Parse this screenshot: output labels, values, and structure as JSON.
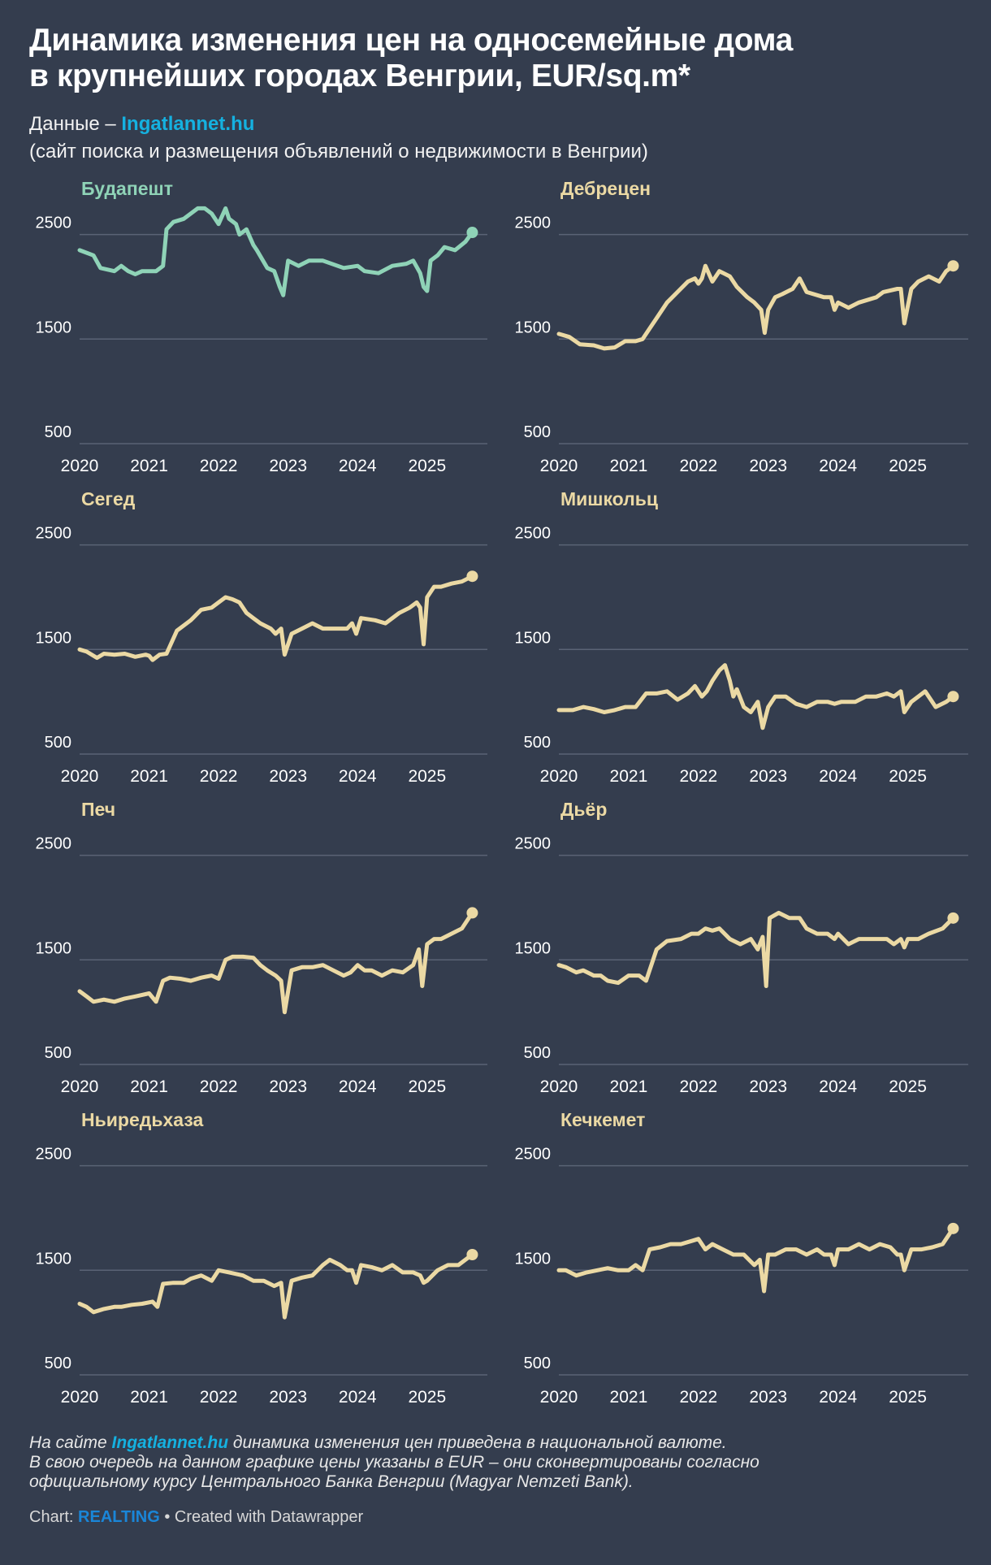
{
  "header": {
    "title_line1": "Динамика изменения цен на односемейные дома",
    "title_line2": "в крупнейших городах Венгрии, EUR/sq.m*",
    "source_prefix": "Данные – ",
    "source_link": "Ingatlannet.hu",
    "source_desc": "(сайт поиска и размещения объявлений о недвижимости в Венгрии)"
  },
  "colors": {
    "background": "#343d4e",
    "budapest": "#8fd3b7",
    "others": "#ebd9a4",
    "grid": "#5a6375",
    "link": "#15b1e0",
    "brand": "#1a86d8"
  },
  "chart_data": [
    {
      "type": "line",
      "title": "Будапешт",
      "color": "#8fd3b7",
      "x_ticks": [
        "2020",
        "2021",
        "2022",
        "2023",
        "2024",
        "2025"
      ],
      "y_ticks": [
        500,
        1500,
        2500
      ],
      "ylim": [
        500,
        2800
      ],
      "xlim": [
        2020.0,
        2025.75
      ],
      "x": [
        2020.0,
        2020.2,
        2020.3,
        2020.5,
        2020.6,
        2020.7,
        2020.8,
        2020.9,
        2021.1,
        2021.2,
        2021.25,
        2021.35,
        2021.5,
        2021.7,
        2021.8,
        2021.9,
        2022.0,
        2022.1,
        2022.15,
        2022.25,
        2022.3,
        2022.4,
        2022.5,
        2022.55,
        2022.7,
        2022.8,
        2022.88,
        2022.93,
        2023.0,
        2023.15,
        2023.3,
        2023.5,
        2023.8,
        2024.0,
        2024.1,
        2024.3,
        2024.5,
        2024.7,
        2024.8,
        2024.9,
        2024.95,
        2025.0,
        2025.05,
        2025.15,
        2025.25,
        2025.4,
        2025.55,
        2025.65
      ],
      "values": [
        2350,
        2300,
        2180,
        2150,
        2200,
        2150,
        2120,
        2150,
        2150,
        2200,
        2550,
        2620,
        2650,
        2750,
        2750,
        2700,
        2600,
        2750,
        2650,
        2600,
        2500,
        2550,
        2400,
        2350,
        2180,
        2150,
        2000,
        1920,
        2250,
        2200,
        2250,
        2250,
        2180,
        2200,
        2150,
        2130,
        2200,
        2220,
        2250,
        2130,
        2000,
        1960,
        2250,
        2300,
        2380,
        2350,
        2430,
        2520
      ]
    },
    {
      "type": "line",
      "title": "Дебрецен",
      "color": "#ebd9a4",
      "x_ticks": [
        "2020",
        "2021",
        "2022",
        "2023",
        "2024",
        "2025"
      ],
      "y_ticks": [
        500,
        1500,
        2500
      ],
      "ylim": [
        500,
        2800
      ],
      "xlim": [
        2020.0,
        2025.75
      ],
      "x": [
        2020.0,
        2020.15,
        2020.3,
        2020.5,
        2020.65,
        2020.8,
        2020.95,
        2021.1,
        2021.2,
        2021.3,
        2021.4,
        2021.55,
        2021.7,
        2021.85,
        2021.95,
        2022.0,
        2022.05,
        2022.1,
        2022.2,
        2022.3,
        2022.45,
        2022.55,
        2022.7,
        2022.8,
        2022.9,
        2022.95,
        2023.0,
        2023.1,
        2023.2,
        2023.35,
        2023.45,
        2023.55,
        2023.8,
        2023.9,
        2023.95,
        2024.0,
        2024.15,
        2024.3,
        2024.55,
        2024.65,
        2024.85,
        2024.9,
        2024.95,
        2025.05,
        2025.15,
        2025.3,
        2025.45,
        2025.55,
        2025.65
      ],
      "values": [
        1550,
        1520,
        1450,
        1440,
        1410,
        1420,
        1480,
        1480,
        1500,
        1600,
        1700,
        1850,
        1950,
        2050,
        2080,
        2030,
        2080,
        2200,
        2050,
        2150,
        2100,
        2000,
        1900,
        1850,
        1780,
        1560,
        1780,
        1900,
        1930,
        1980,
        2080,
        1950,
        1900,
        1900,
        1780,
        1850,
        1800,
        1850,
        1900,
        1950,
        1980,
        1980,
        1650,
        1980,
        2050,
        2100,
        2050,
        2150,
        2200
      ]
    },
    {
      "type": "line",
      "title": "Сегед",
      "color": "#ebd9a4",
      "x_ticks": [
        "2020",
        "2021",
        "2022",
        "2023",
        "2024",
        "2025"
      ],
      "y_ticks": [
        500,
        1500,
        2500
      ],
      "ylim": [
        500,
        2800
      ],
      "xlim": [
        2020.0,
        2025.75
      ],
      "x": [
        2020.0,
        2020.1,
        2020.25,
        2020.35,
        2020.5,
        2020.65,
        2020.8,
        2020.95,
        2021.0,
        2021.05,
        2021.15,
        2021.25,
        2021.4,
        2021.6,
        2021.75,
        2021.9,
        2022.0,
        2022.1,
        2022.2,
        2022.3,
        2022.4,
        2022.5,
        2022.6,
        2022.75,
        2022.82,
        2022.9,
        2022.95,
        2023.05,
        2023.2,
        2023.35,
        2023.5,
        2023.7,
        2023.85,
        2023.92,
        2023.98,
        2024.05,
        2024.25,
        2024.4,
        2024.6,
        2024.75,
        2024.85,
        2024.9,
        2024.95,
        2025.0,
        2025.1,
        2025.2,
        2025.35,
        2025.5,
        2025.65
      ],
      "values": [
        1500,
        1480,
        1420,
        1460,
        1450,
        1460,
        1430,
        1450,
        1440,
        1400,
        1450,
        1460,
        1680,
        1780,
        1880,
        1900,
        1950,
        2000,
        1980,
        1950,
        1850,
        1800,
        1750,
        1700,
        1650,
        1700,
        1450,
        1650,
        1700,
        1750,
        1700,
        1700,
        1700,
        1750,
        1650,
        1800,
        1780,
        1750,
        1850,
        1900,
        1950,
        1900,
        1550,
        2000,
        2100,
        2100,
        2130,
        2150,
        2200
      ]
    },
    {
      "type": "line",
      "title": "Мишкольц",
      "color": "#ebd9a4",
      "x_ticks": [
        "2020",
        "2021",
        "2022",
        "2023",
        "2024",
        "2025"
      ],
      "y_ticks": [
        500,
        1500,
        2500
      ],
      "ylim": [
        500,
        2800
      ],
      "xlim": [
        2020.0,
        2025.75
      ],
      "x": [
        2020.0,
        2020.2,
        2020.35,
        2020.5,
        2020.65,
        2020.8,
        2020.95,
        2021.1,
        2021.25,
        2021.4,
        2021.55,
        2021.7,
        2021.85,
        2021.95,
        2022.05,
        2022.12,
        2022.2,
        2022.3,
        2022.38,
        2022.45,
        2022.5,
        2022.55,
        2022.65,
        2022.75,
        2022.85,
        2022.92,
        2023.0,
        2023.1,
        2023.25,
        2023.4,
        2023.55,
        2023.7,
        2023.85,
        2023.95,
        2024.05,
        2024.25,
        2024.4,
        2024.55,
        2024.7,
        2024.8,
        2024.9,
        2024.95,
        2025.05,
        2025.15,
        2025.25,
        2025.4,
        2025.55,
        2025.65
      ],
      "values": [
        920,
        920,
        950,
        930,
        900,
        920,
        950,
        950,
        1080,
        1080,
        1100,
        1020,
        1080,
        1150,
        1050,
        1100,
        1200,
        1300,
        1350,
        1200,
        1050,
        1120,
        950,
        900,
        1000,
        750,
        950,
        1050,
        1050,
        980,
        950,
        1000,
        1000,
        980,
        1000,
        1000,
        1050,
        1050,
        1080,
        1050,
        1100,
        900,
        1000,
        1050,
        1100,
        950,
        1000,
        1050
      ]
    },
    {
      "type": "line",
      "title": "Печ",
      "color": "#ebd9a4",
      "x_ticks": [
        "2020",
        "2021",
        "2022",
        "2023",
        "2024",
        "2025"
      ],
      "y_ticks": [
        500,
        1500,
        2500
      ],
      "ylim": [
        500,
        2800
      ],
      "xlim": [
        2020.0,
        2025.75
      ],
      "x": [
        2020.0,
        2020.1,
        2020.2,
        2020.35,
        2020.5,
        2020.65,
        2020.8,
        2021.0,
        2021.1,
        2021.2,
        2021.3,
        2021.45,
        2021.6,
        2021.75,
        2021.9,
        2022.0,
        2022.1,
        2022.2,
        2022.35,
        2022.5,
        2022.6,
        2022.7,
        2022.82,
        2022.9,
        2022.95,
        2023.05,
        2023.2,
        2023.35,
        2023.5,
        2023.65,
        2023.8,
        2023.9,
        2024.0,
        2024.1,
        2024.2,
        2024.35,
        2024.5,
        2024.65,
        2024.8,
        2024.88,
        2024.93,
        2025.0,
        2025.1,
        2025.2,
        2025.35,
        2025.5,
        2025.65
      ],
      "values": [
        1200,
        1150,
        1100,
        1120,
        1100,
        1130,
        1150,
        1180,
        1100,
        1300,
        1330,
        1320,
        1300,
        1330,
        1350,
        1320,
        1500,
        1530,
        1530,
        1520,
        1450,
        1400,
        1350,
        1300,
        1000,
        1400,
        1430,
        1430,
        1450,
        1400,
        1350,
        1380,
        1450,
        1400,
        1400,
        1350,
        1400,
        1380,
        1450,
        1600,
        1250,
        1650,
        1700,
        1700,
        1750,
        1800,
        1950
      ]
    },
    {
      "type": "line",
      "title": "Дьёр",
      "color": "#ebd9a4",
      "x_ticks": [
        "2020",
        "2021",
        "2022",
        "2023",
        "2024",
        "2025"
      ],
      "y_ticks": [
        500,
        1500,
        2500
      ],
      "ylim": [
        500,
        2800
      ],
      "xlim": [
        2020.0,
        2025.75
      ],
      "x": [
        2020.0,
        2020.1,
        2020.25,
        2020.35,
        2020.5,
        2020.6,
        2020.7,
        2020.85,
        2021.0,
        2021.15,
        2021.25,
        2021.4,
        2021.55,
        2021.75,
        2021.9,
        2022.0,
        2022.1,
        2022.2,
        2022.3,
        2022.45,
        2022.6,
        2022.75,
        2022.85,
        2022.92,
        2022.97,
        2023.02,
        2023.15,
        2023.3,
        2023.45,
        2023.55,
        2023.7,
        2023.85,
        2023.95,
        2024.0,
        2024.15,
        2024.3,
        2024.45,
        2024.55,
        2024.7,
        2024.8,
        2024.9,
        2024.95,
        2025.0,
        2025.15,
        2025.3,
        2025.5,
        2025.65
      ],
      "values": [
        1450,
        1430,
        1380,
        1400,
        1350,
        1350,
        1300,
        1280,
        1350,
        1350,
        1300,
        1600,
        1680,
        1700,
        1750,
        1750,
        1800,
        1780,
        1800,
        1700,
        1650,
        1700,
        1600,
        1720,
        1250,
        1900,
        1950,
        1900,
        1900,
        1800,
        1750,
        1750,
        1700,
        1750,
        1650,
        1700,
        1700,
        1700,
        1700,
        1650,
        1700,
        1620,
        1700,
        1700,
        1750,
        1800,
        1900
      ]
    },
    {
      "type": "line",
      "title": "Ньиредьхаза",
      "color": "#ebd9a4",
      "x_ticks": [
        "2020",
        "2021",
        "2022",
        "2023",
        "2024",
        "2025"
      ],
      "y_ticks": [
        500,
        1500,
        2500
      ],
      "ylim": [
        500,
        2800
      ],
      "xlim": [
        2020.0,
        2025.75
      ],
      "x": [
        2020.0,
        2020.1,
        2020.2,
        2020.35,
        2020.5,
        2020.6,
        2020.75,
        2020.9,
        2021.05,
        2021.12,
        2021.2,
        2021.35,
        2021.5,
        2021.6,
        2021.75,
        2021.9,
        2022.0,
        2022.15,
        2022.35,
        2022.5,
        2022.65,
        2022.8,
        2022.9,
        2022.95,
        2023.05,
        2023.2,
        2023.35,
        2023.5,
        2023.6,
        2023.75,
        2023.85,
        2023.92,
        2023.98,
        2024.05,
        2024.2,
        2024.35,
        2024.5,
        2024.65,
        2024.8,
        2024.9,
        2024.95,
        2025.0,
        2025.15,
        2025.3,
        2025.45,
        2025.55,
        2025.65
      ],
      "values": [
        1180,
        1150,
        1100,
        1130,
        1150,
        1150,
        1170,
        1180,
        1200,
        1150,
        1370,
        1380,
        1380,
        1420,
        1450,
        1400,
        1500,
        1480,
        1450,
        1400,
        1400,
        1350,
        1380,
        1050,
        1400,
        1430,
        1450,
        1550,
        1600,
        1550,
        1500,
        1500,
        1380,
        1550,
        1530,
        1500,
        1550,
        1480,
        1480,
        1450,
        1380,
        1400,
        1500,
        1550,
        1550,
        1600,
        1650
      ]
    },
    {
      "type": "line",
      "title": "Кечкемет",
      "color": "#ebd9a4",
      "x_ticks": [
        "2020",
        "2021",
        "2022",
        "2023",
        "2024",
        "2025"
      ],
      "y_ticks": [
        500,
        1500,
        2500
      ],
      "ylim": [
        500,
        2800
      ],
      "xlim": [
        2020.0,
        2025.75
      ],
      "x": [
        2020.0,
        2020.1,
        2020.25,
        2020.4,
        2020.55,
        2020.7,
        2020.85,
        2021.0,
        2021.1,
        2021.2,
        2021.3,
        2021.45,
        2021.6,
        2021.75,
        2021.9,
        2022.0,
        2022.1,
        2022.2,
        2022.35,
        2022.5,
        2022.65,
        2022.8,
        2022.88,
        2022.94,
        2023.0,
        2023.1,
        2023.25,
        2023.4,
        2023.55,
        2023.7,
        2023.8,
        2023.9,
        2023.95,
        2024.0,
        2024.15,
        2024.3,
        2024.45,
        2024.6,
        2024.75,
        2024.85,
        2024.9,
        2024.95,
        2025.05,
        2025.2,
        2025.35,
        2025.5,
        2025.65
      ],
      "values": [
        1500,
        1500,
        1450,
        1480,
        1500,
        1520,
        1500,
        1500,
        1550,
        1500,
        1700,
        1720,
        1750,
        1750,
        1780,
        1800,
        1700,
        1750,
        1700,
        1650,
        1650,
        1550,
        1600,
        1300,
        1650,
        1650,
        1700,
        1700,
        1650,
        1700,
        1650,
        1650,
        1550,
        1700,
        1700,
        1750,
        1700,
        1750,
        1720,
        1650,
        1650,
        1500,
        1700,
        1700,
        1720,
        1750,
        1900
      ]
    }
  ],
  "footnote": {
    "line1_prefix": "На сайте ",
    "line1_link": "Ingatlannet.hu",
    "line1_suffix": " динамика изменения цен приведена в национальной валюте.",
    "line2": "В свою очередь на данном графике цены указаны в EUR – они сконвертированы согласно",
    "line3": "официальному курсу Центрального Банка Венгрии (Magyar Nemzeti Bank)."
  },
  "footer": {
    "chart_prefix": "Chart: ",
    "brand": "REALTING",
    "suffix": " • Created with Datawrapper"
  }
}
